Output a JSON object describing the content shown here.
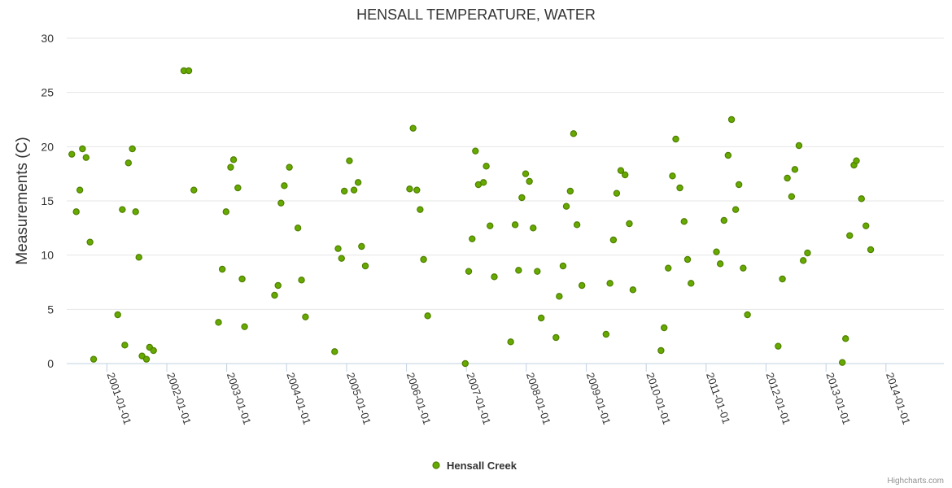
{
  "chart_data": {
    "type": "scatter",
    "title": "HENSALL TEMPERATURE, WATER",
    "ylabel": "Measurements (C)",
    "xlabel": "",
    "ylim": [
      0,
      30
    ],
    "yticks": [
      0,
      5,
      10,
      15,
      20,
      25,
      30
    ],
    "xlim": [
      "2000-05-01",
      "2014-12-20"
    ],
    "xticks": [
      "2001-01-01",
      "2002-01-01",
      "2003-01-01",
      "2004-01-01",
      "2005-01-01",
      "2006-01-01",
      "2007-01-01",
      "2008-01-01",
      "2009-01-01",
      "2010-01-01",
      "2011-01-01",
      "2012-01-01",
      "2013-01-01",
      "2014-01-01"
    ],
    "grid": true,
    "legend": "bottom-center",
    "series": [
      {
        "name": "Hensall Creek",
        "color": "#66aa00",
        "points": [
          [
            "2000-06-01",
            19.3
          ],
          [
            "2000-06-28",
            14.0
          ],
          [
            "2000-07-20",
            16.0
          ],
          [
            "2000-08-05",
            19.8
          ],
          [
            "2000-08-27",
            19.0
          ],
          [
            "2000-09-20",
            11.2
          ],
          [
            "2000-10-12",
            0.4
          ],
          [
            "2001-03-08",
            4.5
          ],
          [
            "2001-04-05",
            14.2
          ],
          [
            "2001-04-20",
            1.7
          ],
          [
            "2001-05-12",
            18.5
          ],
          [
            "2001-06-05",
            19.8
          ],
          [
            "2001-06-25",
            14.0
          ],
          [
            "2001-07-15",
            9.8
          ],
          [
            "2001-08-03",
            0.7
          ],
          [
            "2001-08-30",
            0.4
          ],
          [
            "2001-09-18",
            1.5
          ],
          [
            "2001-10-12",
            1.2
          ],
          [
            "2002-04-15",
            27.0
          ],
          [
            "2002-05-15",
            27.0
          ],
          [
            "2002-06-15",
            16.0
          ],
          [
            "2002-11-12",
            3.8
          ],
          [
            "2002-12-05",
            8.7
          ],
          [
            "2002-12-28",
            14.0
          ],
          [
            "2003-01-25",
            18.1
          ],
          [
            "2003-02-12",
            18.8
          ],
          [
            "2003-03-10",
            16.2
          ],
          [
            "2003-04-05",
            7.8
          ],
          [
            "2003-04-20",
            3.4
          ],
          [
            "2003-10-20",
            6.3
          ],
          [
            "2003-11-10",
            7.2
          ],
          [
            "2003-11-28",
            14.8
          ],
          [
            "2003-12-18",
            16.4
          ],
          [
            "2004-01-18",
            18.1
          ],
          [
            "2004-03-10",
            12.5
          ],
          [
            "2004-04-01",
            7.7
          ],
          [
            "2004-04-25",
            4.3
          ],
          [
            "2004-10-20",
            1.1
          ],
          [
            "2004-11-10",
            10.6
          ],
          [
            "2004-12-01",
            9.7
          ],
          [
            "2004-12-18",
            15.9
          ],
          [
            "2005-01-18",
            18.7
          ],
          [
            "2005-02-15",
            16.0
          ],
          [
            "2005-03-12",
            16.7
          ],
          [
            "2005-04-02",
            10.8
          ],
          [
            "2005-04-25",
            9.0
          ],
          [
            "2006-01-20",
            16.1
          ],
          [
            "2006-02-10",
            21.7
          ],
          [
            "2006-03-05",
            16.0
          ],
          [
            "2006-03-25",
            14.2
          ],
          [
            "2006-04-15",
            9.6
          ],
          [
            "2006-05-10",
            4.4
          ],
          [
            "2006-12-25",
            0.0
          ],
          [
            "2007-01-15",
            8.5
          ],
          [
            "2007-02-05",
            11.5
          ],
          [
            "2007-02-25",
            19.6
          ],
          [
            "2007-03-15",
            16.5
          ],
          [
            "2007-04-15",
            16.7
          ],
          [
            "2007-05-02",
            18.2
          ],
          [
            "2007-05-25",
            12.7
          ],
          [
            "2007-06-20",
            8.0
          ],
          [
            "2007-09-28",
            2.0
          ],
          [
            "2007-10-25",
            12.8
          ],
          [
            "2007-11-15",
            8.6
          ],
          [
            "2007-12-05",
            15.3
          ],
          [
            "2007-12-28",
            17.5
          ],
          [
            "2008-01-20",
            16.8
          ],
          [
            "2008-02-12",
            12.5
          ],
          [
            "2008-03-08",
            8.5
          ],
          [
            "2008-04-01",
            4.2
          ],
          [
            "2008-06-30",
            2.4
          ],
          [
            "2008-07-20",
            6.2
          ],
          [
            "2008-08-12",
            9.0
          ],
          [
            "2008-09-01",
            14.5
          ],
          [
            "2008-09-25",
            15.9
          ],
          [
            "2008-10-15",
            21.2
          ],
          [
            "2008-11-05",
            12.8
          ],
          [
            "2008-12-05",
            7.2
          ],
          [
            "2009-05-01",
            2.7
          ],
          [
            "2009-05-25",
            7.4
          ],
          [
            "2009-06-15",
            11.4
          ],
          [
            "2009-07-05",
            15.7
          ],
          [
            "2009-07-30",
            17.8
          ],
          [
            "2009-08-25",
            17.4
          ],
          [
            "2009-09-20",
            12.9
          ],
          [
            "2009-10-12",
            6.8
          ],
          [
            "2010-04-01",
            1.2
          ],
          [
            "2010-04-20",
            3.3
          ],
          [
            "2010-05-15",
            8.8
          ],
          [
            "2010-06-10",
            17.3
          ],
          [
            "2010-06-30",
            20.7
          ],
          [
            "2010-07-25",
            16.2
          ],
          [
            "2010-08-20",
            13.1
          ],
          [
            "2010-09-10",
            9.6
          ],
          [
            "2010-10-01",
            7.4
          ],
          [
            "2011-03-05",
            10.3
          ],
          [
            "2011-03-28",
            9.2
          ],
          [
            "2011-04-20",
            13.2
          ],
          [
            "2011-05-15",
            19.2
          ],
          [
            "2011-06-05",
            22.5
          ],
          [
            "2011-06-30",
            14.2
          ],
          [
            "2011-07-20",
            16.5
          ],
          [
            "2011-08-15",
            8.8
          ],
          [
            "2011-09-10",
            4.5
          ],
          [
            "2012-03-15",
            1.6
          ],
          [
            "2012-04-10",
            7.8
          ],
          [
            "2012-05-10",
            17.1
          ],
          [
            "2012-06-05",
            15.4
          ],
          [
            "2012-06-25",
            17.9
          ],
          [
            "2012-07-20",
            20.1
          ],
          [
            "2012-08-15",
            9.5
          ],
          [
            "2012-09-10",
            10.2
          ],
          [
            "2013-04-10",
            0.1
          ],
          [
            "2013-04-30",
            2.3
          ],
          [
            "2013-05-25",
            11.8
          ],
          [
            "2013-06-20",
            18.3
          ],
          [
            "2013-07-05",
            18.7
          ],
          [
            "2013-08-05",
            15.2
          ],
          [
            "2013-09-01",
            12.7
          ],
          [
            "2013-09-30",
            10.5
          ]
        ]
      }
    ]
  },
  "credit": "Highcharts.com"
}
